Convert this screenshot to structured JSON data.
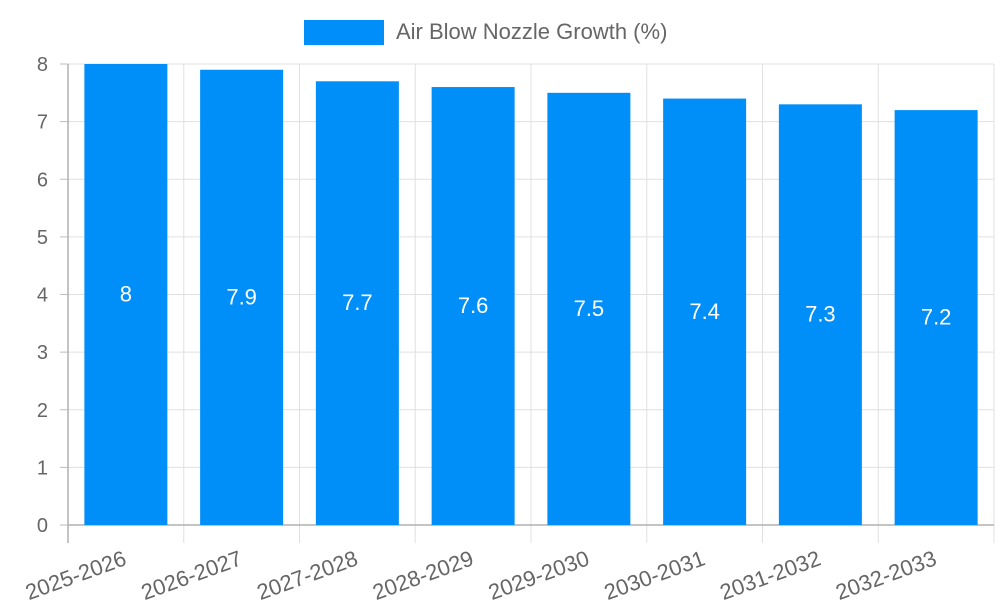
{
  "chart_data": {
    "type": "bar",
    "title": "",
    "xlabel": "",
    "ylabel": "",
    "ylim": [
      0,
      8
    ],
    "yticks": [
      0,
      1,
      2,
      3,
      4,
      5,
      6,
      7,
      8
    ],
    "grid": true,
    "legend_position": "top",
    "categories": [
      "2025-2026",
      "2026-2027",
      "2027-2028",
      "2028-2029",
      "2029-2030",
      "2030-2031",
      "2031-2032",
      "2032-2033"
    ],
    "series": [
      {
        "name": "Air Blow Nozzle Growth (%)",
        "color": "#008ff9",
        "values": [
          8,
          7.9,
          7.7,
          7.6,
          7.5,
          7.4,
          7.3,
          7.2
        ]
      }
    ],
    "data_labels": [
      "8",
      "7.9",
      "7.7",
      "7.6",
      "7.5",
      "7.4",
      "7.3",
      "7.2"
    ]
  },
  "legend": {
    "label": "Air Blow Nozzle Growth (%)"
  }
}
